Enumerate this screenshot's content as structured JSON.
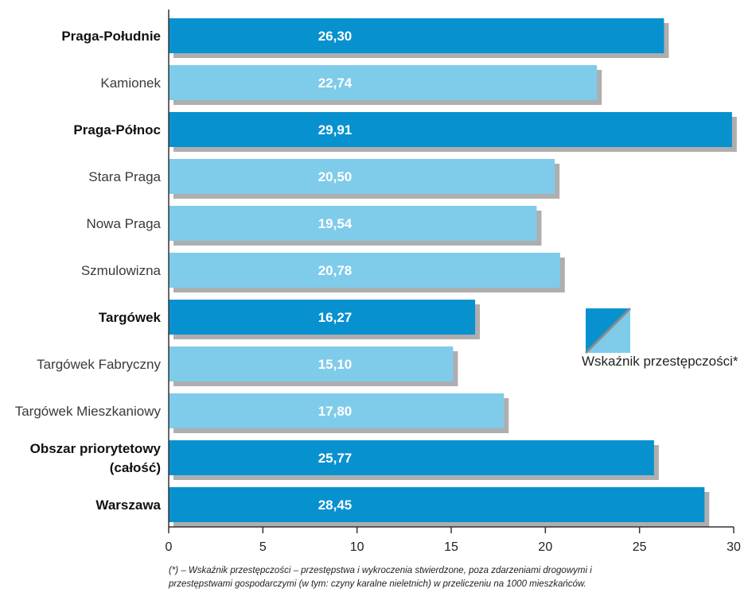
{
  "colors": {
    "primary_bar": "#0891cf",
    "secondary_bar": "#7fcbea",
    "shadow": "#6b6b6b",
    "axis": "#333333"
  },
  "chart_data": {
    "type": "bar",
    "orientation": "horizontal",
    "categories": [
      {
        "label": [
          "Praga-Południe"
        ],
        "value": 26.3,
        "value_label": "26,30",
        "style": "primary"
      },
      {
        "label": [
          "Kamionek"
        ],
        "value": 22.74,
        "value_label": "22,74",
        "style": "secondary"
      },
      {
        "label": [
          "Praga-Północ"
        ],
        "value": 29.91,
        "value_label": "29,91",
        "style": "primary"
      },
      {
        "label": [
          "Stara Praga"
        ],
        "value": 20.5,
        "value_label": "20,50",
        "style": "secondary"
      },
      {
        "label": [
          "Nowa Praga"
        ],
        "value": 19.54,
        "value_label": "19,54",
        "style": "secondary"
      },
      {
        "label": [
          "Szmulowizna"
        ],
        "value": 20.78,
        "value_label": "20,78",
        "style": "secondary"
      },
      {
        "label": [
          "Targówek"
        ],
        "value": 16.27,
        "value_label": "16,27",
        "style": "primary"
      },
      {
        "label": [
          "Targówek Fabryczny"
        ],
        "value": 15.1,
        "value_label": "15,10",
        "style": "secondary"
      },
      {
        "label": [
          "Targówek Mieszkaniowy"
        ],
        "value": 17.8,
        "value_label": "17,80",
        "style": "secondary"
      },
      {
        "label": [
          "Obszar priorytetowy",
          "(całość)"
        ],
        "value": 25.77,
        "value_label": "25,77",
        "style": "primary"
      },
      {
        "label": [
          "Warszawa"
        ],
        "value": 28.45,
        "value_label": "28,45",
        "style": "primary"
      }
    ],
    "xlim": [
      0,
      30
    ],
    "xticks": [
      0,
      5,
      10,
      15,
      20,
      25,
      30
    ],
    "xtick_labels": [
      "0",
      "5",
      "10",
      "15",
      "20",
      "25",
      "30"
    ],
    "grid": false,
    "legend": {
      "placement": "right",
      "entries": [
        "Wskaźnik przestępczości*"
      ]
    }
  },
  "footnote": {
    "line1": "(*) – Wskaźnik przestępczości – przestępstwa i wykroczenia stwierdzone, poza zdarzeniami drogowymi i",
    "line2": "przestępstwami gospodarczymi (w tym: czyny karalne nieletnich) w przeliczeniu na 1000 mieszkańców."
  }
}
